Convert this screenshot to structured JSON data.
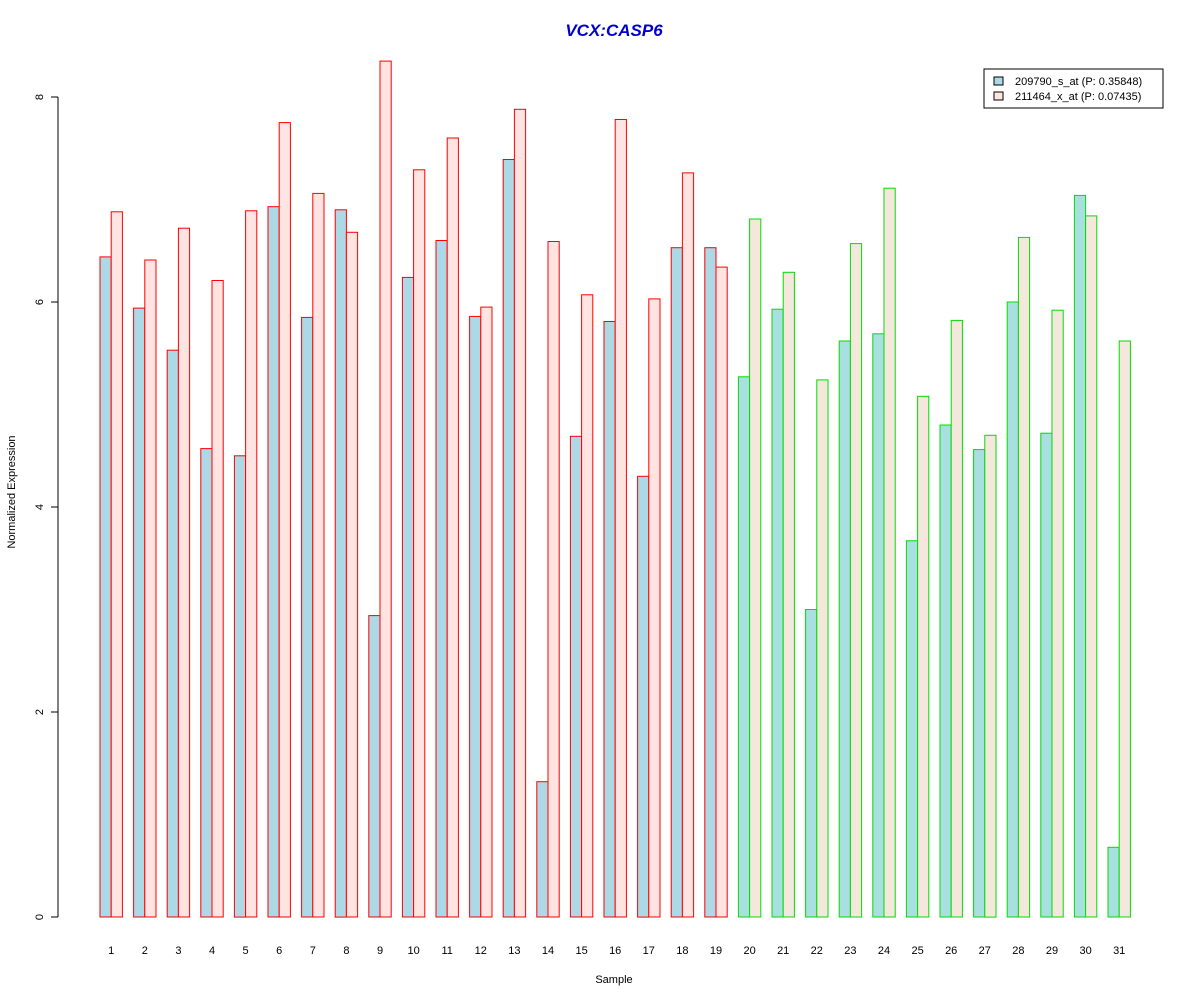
{
  "chart_data": {
    "type": "bar",
    "title": "VCX:CASP6",
    "xlabel": "Sample",
    "ylabel": "Normalized Expression",
    "ylim": [
      0,
      8
    ],
    "y_ticks": [
      0,
      2,
      4,
      6,
      8
    ],
    "grid": false,
    "legend_position": "top-right",
    "categories": [
      "1",
      "2",
      "3",
      "4",
      "5",
      "6",
      "7",
      "8",
      "9",
      "10",
      "11",
      "12",
      "13",
      "14",
      "15",
      "16",
      "17",
      "18",
      "19",
      "20",
      "21",
      "22",
      "23",
      "24",
      "25",
      "26",
      "27",
      "28",
      "29",
      "30",
      "31"
    ],
    "group_break_after": 19,
    "series": [
      {
        "name": "209790_s_at (P: 0.35848)",
        "values": [
          6.44,
          5.94,
          5.53,
          4.57,
          4.5,
          6.93,
          5.85,
          6.9,
          2.94,
          6.24,
          6.6,
          5.86,
          7.39,
          1.32,
          4.69,
          5.81,
          4.3,
          6.53,
          6.53,
          5.27,
          5.93,
          3.0,
          5.62,
          5.69,
          3.67,
          4.8,
          4.56,
          6.0,
          4.72,
          7.04,
          0.68
        ]
      },
      {
        "name": "211464_x_at (P: 0.07435)",
        "values": [
          6.88,
          6.41,
          6.72,
          6.21,
          6.89,
          7.75,
          7.06,
          6.68,
          8.35,
          7.29,
          7.6,
          5.95,
          7.88,
          6.59,
          6.07,
          7.78,
          6.03,
          7.26,
          6.34,
          6.81,
          6.29,
          5.24,
          6.57,
          7.11,
          5.08,
          5.82,
          4.7,
          6.63,
          5.92,
          6.84,
          5.62
        ]
      }
    ],
    "colors": {
      "series1_fill": "#add8e6",
      "series2_fill": "#ffe4e1",
      "series1_fill_group2": "#a8dfe0",
      "series2_fill_group2": "#f4e8dc",
      "group1_border": "#ff0000",
      "group2_border": "#00dd00",
      "title_color": "#0000cc"
    }
  }
}
